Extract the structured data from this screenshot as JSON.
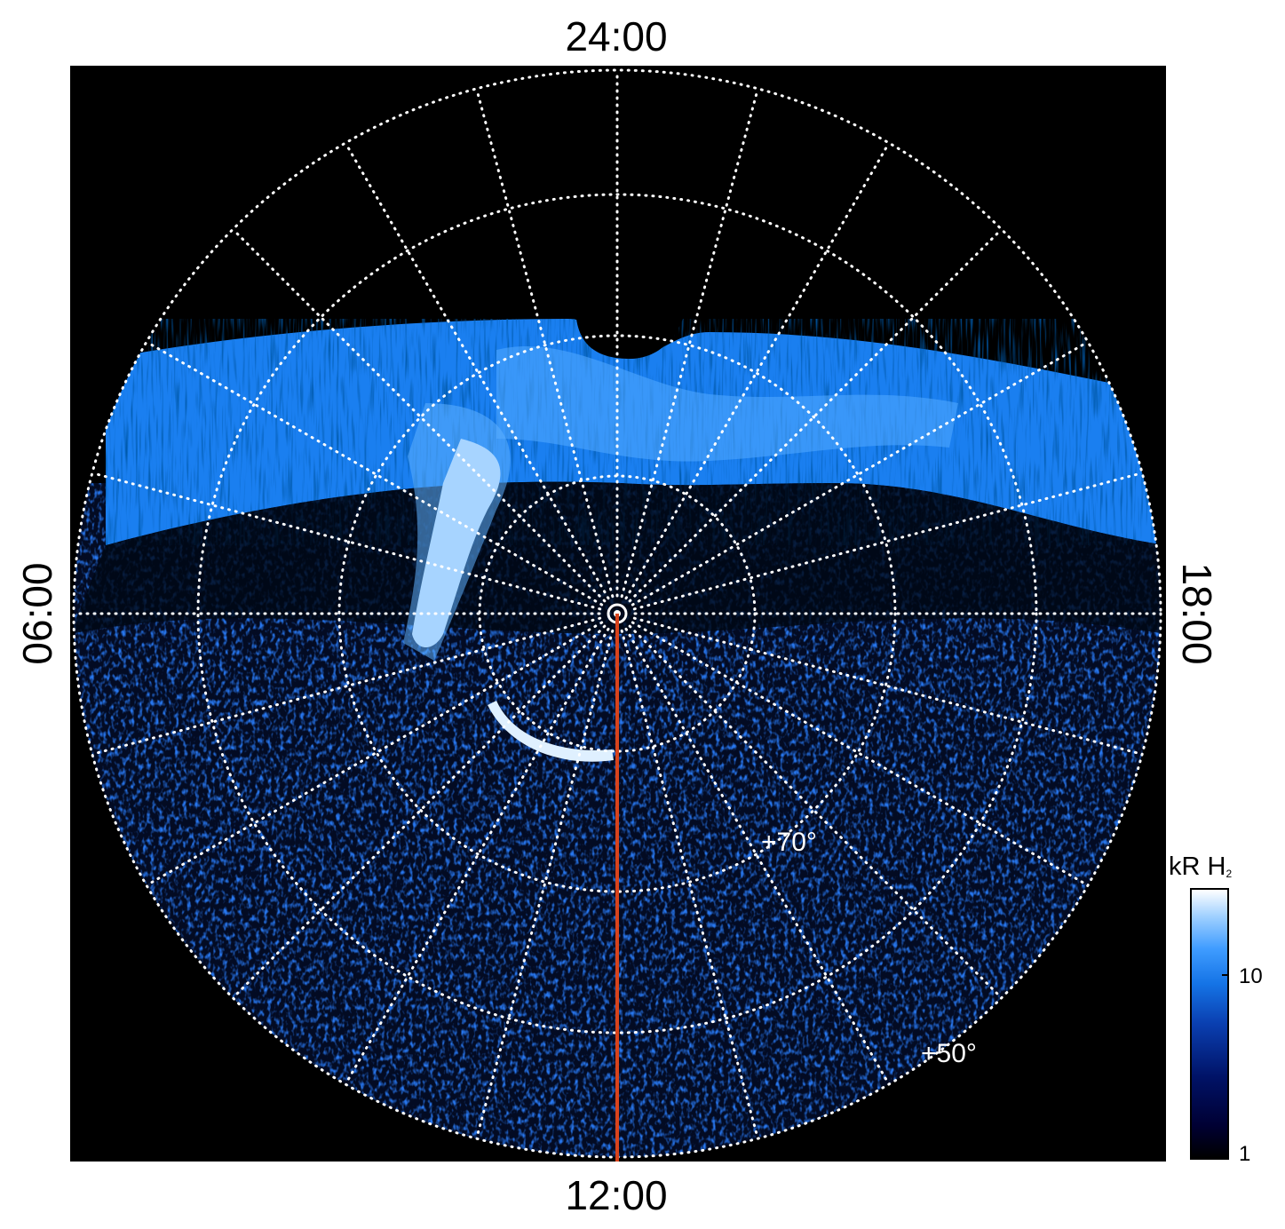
{
  "local_time_labels": {
    "top": "24:00",
    "bottom": "12:00",
    "left": "06:00",
    "right": "18:00"
  },
  "latitude_labels": [
    "+70°",
    "+50°"
  ],
  "colorbar": {
    "title": "kR H",
    "title_subscript": "2",
    "ticks": [
      "10",
      "1"
    ],
    "scale": "log"
  },
  "colors": {
    "background": "#000000",
    "grid": "#ffffff",
    "noon_meridian": "#d8431c",
    "aurora_bright": "#e6f4ff",
    "aurora_mid": "#2a8cff",
    "aurora_dim": "#0a2f8a"
  },
  "projection": "polar stereographic, north pole at center"
}
